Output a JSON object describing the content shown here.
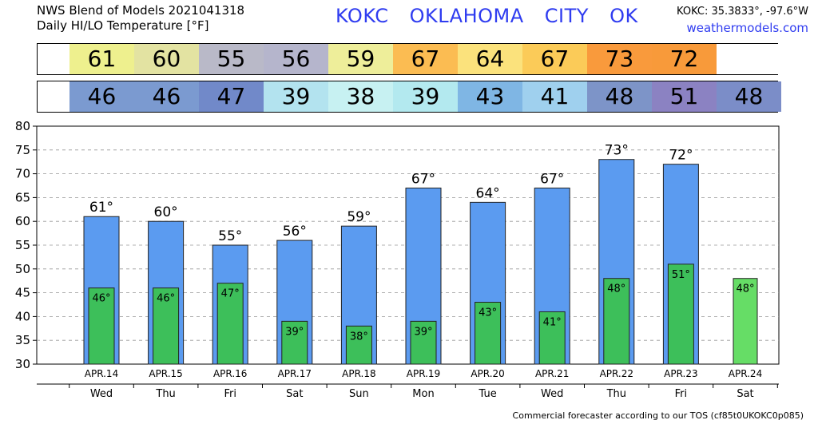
{
  "header": {
    "line1": "NWS Blend of Models 2021041318",
    "line2": "Daily HI/LO Temperature [°F]",
    "station": "KOKC   OKLAHOMA CITY   OK",
    "coords": "KOKC: 35.3833°, -97.6°W",
    "site": "weathermodels.com"
  },
  "hi_strip": {
    "values": [
      "61",
      "60",
      "55",
      "56",
      "59",
      "67",
      "64",
      "67",
      "73",
      "72",
      ""
    ],
    "colors": [
      "#eef08e",
      "#e3e3a2",
      "#b9b9c8",
      "#b5b5cc",
      "#eeee9a",
      "#fbbc52",
      "#fbe27c",
      "#fbcb58",
      "#f99a3c",
      "#f89a3a",
      "#ffffff"
    ]
  },
  "lo_strip": {
    "values": [
      "46",
      "46",
      "47",
      "39",
      "38",
      "39",
      "43",
      "41",
      "48",
      "51",
      "48"
    ],
    "colors": [
      "#7b9ad0",
      "#7b9ad0",
      "#7189c9",
      "#b3e3ef",
      "#c7f1f2",
      "#b3e9ef",
      "#7fb6e4",
      "#9fd0ee",
      "#7d94c8",
      "#8b82c2",
      "#7b8dc8"
    ]
  },
  "chart_data": {
    "type": "bar",
    "categories": [
      "APR.14",
      "APR.15",
      "APR.16",
      "APR.17",
      "APR.18",
      "APR.19",
      "APR.20",
      "APR.21",
      "APR.22",
      "APR.23",
      "APR.24"
    ],
    "weekdays": [
      "Wed",
      "Thu",
      "Fri",
      "Sat",
      "Sun",
      "Mon",
      "Tue",
      "Wed",
      "Thu",
      "Fri",
      "Sat"
    ],
    "series": [
      {
        "values": [
          61,
          60,
          55,
          56,
          59,
          67,
          64,
          67,
          73,
          72,
          null
        ],
        "color": "#5b9bf0",
        "labels": [
          "61°",
          "60°",
          "55°",
          "56°",
          "59°",
          "67°",
          "64°",
          "67°",
          "73°",
          "72°",
          ""
        ]
      },
      {
        "values": [
          46,
          46,
          47,
          39,
          38,
          39,
          43,
          41,
          48,
          51,
          48
        ],
        "color": "#3dbf5a",
        "labels": [
          "46°",
          "46°",
          "47°",
          "39°",
          "38°",
          "39°",
          "43°",
          "41°",
          "48°",
          "51°",
          "48°"
        ]
      }
    ],
    "ylim": [
      30,
      80
    ],
    "yticks": [
      "30",
      "35",
      "40",
      "45",
      "50",
      "55",
      "60",
      "65",
      "70",
      "75",
      "80"
    ],
    "grid": true,
    "last_lo_color": "#66dd66"
  },
  "footer": "Commercial forecaster according to our TOS (cf85t0UKOKC0p085)"
}
